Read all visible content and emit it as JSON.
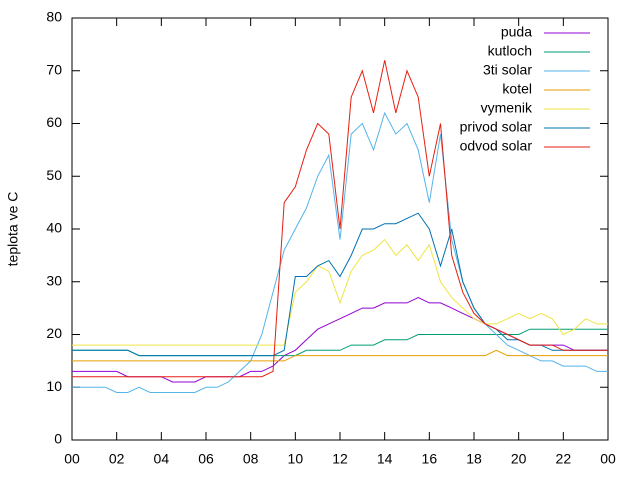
{
  "chart_data": {
    "type": "line",
    "ylabel": "teplota ve C",
    "x": [
      0,
      0.5,
      1,
      1.5,
      2,
      2.5,
      3,
      3.5,
      4,
      4.5,
      5,
      5.5,
      6,
      6.5,
      7,
      7.5,
      8,
      8.5,
      9,
      9.5,
      10,
      10.5,
      11,
      11.5,
      12,
      12.5,
      13,
      13.5,
      14,
      14.5,
      15,
      15.5,
      16,
      16.5,
      17,
      17.5,
      18,
      18.5,
      19,
      19.5,
      20,
      20.5,
      21,
      21.5,
      22,
      22.5,
      23,
      23.5,
      24
    ],
    "xlim": [
      0,
      24
    ],
    "xticks": [
      {
        "value": 0,
        "label": "00"
      },
      {
        "value": 2,
        "label": "02"
      },
      {
        "value": 4,
        "label": "04"
      },
      {
        "value": 6,
        "label": "06"
      },
      {
        "value": 8,
        "label": "08"
      },
      10,
      12,
      14,
      16,
      18,
      20,
      22,
      {
        "value": 24,
        "label": "00"
      }
    ],
    "ylim": [
      0,
      80
    ],
    "yticks": [
      0,
      10,
      20,
      30,
      40,
      50,
      60,
      70,
      80
    ],
    "legend": "top-right",
    "series": [
      {
        "name": "puda",
        "color": "#9400d3",
        "values": [
          13,
          13,
          13,
          13,
          13,
          12,
          12,
          12,
          12,
          11,
          11,
          11,
          12,
          12,
          12,
          12,
          13,
          13,
          14,
          16,
          17,
          19,
          21,
          22,
          23,
          24,
          25,
          25,
          26,
          26,
          26,
          27,
          26,
          26,
          25,
          24,
          23,
          22,
          21,
          20,
          19,
          18,
          18,
          18,
          18,
          17,
          17,
          17,
          17
        ]
      },
      {
        "name": "kutloch",
        "color": "#009e73",
        "values": [
          17,
          17,
          17,
          17,
          17,
          17,
          16,
          16,
          16,
          16,
          16,
          16,
          16,
          16,
          16,
          16,
          16,
          16,
          16,
          16,
          16,
          17,
          17,
          17,
          17,
          18,
          18,
          18,
          19,
          19,
          19,
          20,
          20,
          20,
          20,
          20,
          20,
          20,
          20,
          20,
          20,
          21,
          21,
          21,
          21,
          21,
          21,
          21,
          21
        ]
      },
      {
        "name": "3ti solar",
        "color": "#56b4e9",
        "values": [
          10,
          10,
          10,
          10,
          9,
          9,
          10,
          9,
          9,
          9,
          9,
          9,
          10,
          10,
          11,
          13,
          15,
          20,
          28,
          36,
          40,
          44,
          50,
          54,
          38,
          58,
          60,
          55,
          62,
          58,
          60,
          55,
          45,
          58,
          38,
          30,
          25,
          22,
          20,
          18,
          17,
          16,
          15,
          15,
          14,
          14,
          14,
          13,
          13
        ]
      },
      {
        "name": "kotel",
        "color": "#e69f00",
        "values": [
          15,
          15,
          15,
          15,
          15,
          15,
          15,
          15,
          15,
          15,
          15,
          15,
          15,
          15,
          15,
          15,
          15,
          15,
          15,
          15,
          16,
          16,
          16,
          16,
          16,
          16,
          16,
          16,
          16,
          16,
          16,
          16,
          16,
          16,
          16,
          16,
          16,
          16,
          17,
          16,
          16,
          16,
          16,
          16,
          16,
          16,
          16,
          16,
          16
        ]
      },
      {
        "name": "vymenik",
        "color": "#f0e442",
        "values": [
          18,
          18,
          18,
          18,
          18,
          18,
          18,
          18,
          18,
          18,
          18,
          18,
          18,
          18,
          18,
          18,
          18,
          18,
          18,
          18,
          28,
          30,
          33,
          32,
          26,
          32,
          35,
          36,
          38,
          35,
          37,
          34,
          37,
          30,
          27,
          25,
          23,
          22,
          22,
          23,
          24,
          23,
          24,
          23,
          20,
          21,
          23,
          22,
          22
        ]
      },
      {
        "name": "privod solar",
        "color": "#0072b2",
        "values": [
          17,
          17,
          17,
          17,
          17,
          17,
          16,
          16,
          16,
          16,
          16,
          16,
          16,
          16,
          16,
          16,
          16,
          16,
          16,
          17,
          31,
          31,
          33,
          34,
          31,
          35,
          40,
          40,
          41,
          41,
          42,
          43,
          40,
          33,
          40,
          30,
          25,
          22,
          21,
          19,
          19,
          18,
          18,
          17,
          17,
          17,
          17,
          17,
          17
        ]
      },
      {
        "name": "odvod solar",
        "color": "#e51e10",
        "values": [
          12,
          12,
          12,
          12,
          12,
          12,
          12,
          12,
          12,
          12,
          12,
          12,
          12,
          12,
          12,
          12,
          12,
          12,
          13,
          45,
          48,
          55,
          60,
          58,
          40,
          65,
          70,
          62,
          72,
          62,
          70,
          65,
          50,
          60,
          35,
          28,
          24,
          22,
          21,
          20,
          19,
          18,
          18,
          18,
          17,
          17,
          17,
          17,
          17
        ]
      }
    ]
  }
}
